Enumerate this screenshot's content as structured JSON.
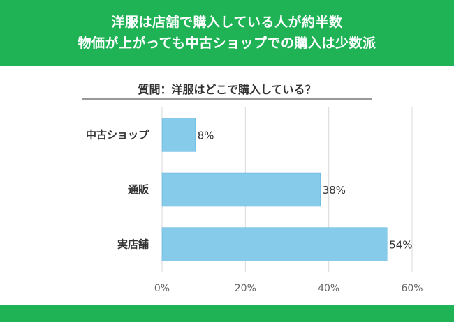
{
  "header": {
    "line1": "洋服は店舗で購入している人が約半数",
    "line2": "物価が上がっても中古ショップでの購入は少数派"
  },
  "colors": {
    "brand_green": "#1fb356",
    "bar": "#87cbea",
    "bar_stroke": "#5bb4de",
    "grid": "#d9d9d9"
  },
  "chart_data": {
    "type": "bar",
    "orientation": "horizontal",
    "title": "質問：洋服はどこで購入している？",
    "categories": [
      "中古ショップ",
      "通販",
      "実店舗"
    ],
    "values": [
      8,
      38,
      54
    ],
    "value_labels": [
      "8%",
      "38%",
      "54%"
    ],
    "xlim": [
      0,
      60
    ],
    "xticks": [
      0,
      20,
      40,
      60
    ],
    "xtick_labels": [
      "0%",
      "20%",
      "40%",
      "60%"
    ],
    "grid": true,
    "legend": "none"
  }
}
